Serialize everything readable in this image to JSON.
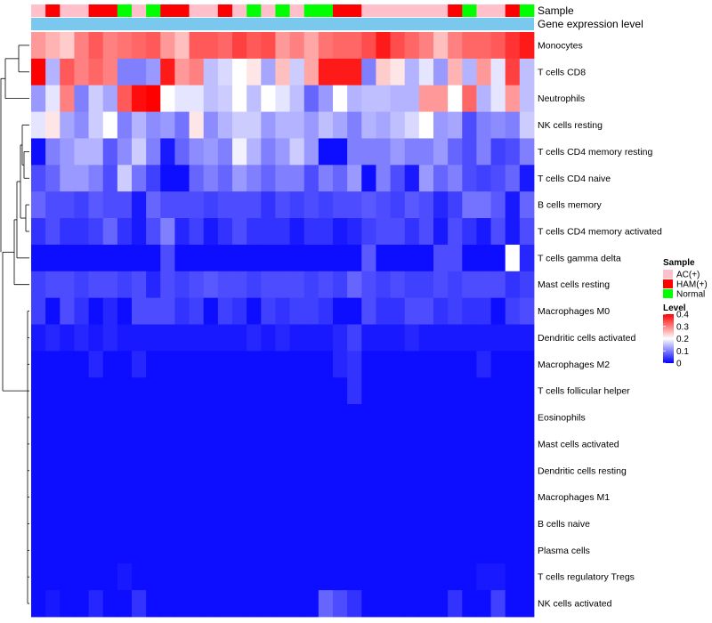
{
  "chart_data": {
    "type": "heatmap",
    "title": "",
    "annotation_rows": [
      "Sample",
      "Gene expression level"
    ],
    "sample_groups": [
      "AC(+)",
      "HAM(+)",
      "Normal"
    ],
    "sample_group_colors": {
      "AC(+)": "#ffc0cb",
      "HAM(+)": "#ff0000",
      "Normal": "#00ff00"
    },
    "gene_expression_level_color": "#7ac8ee",
    "sample_sequence": [
      "AC(+)",
      "HAM(+)",
      "AC(+)",
      "AC(+)",
      "HAM(+)",
      "HAM(+)",
      "Normal",
      "AC(+)",
      "Normal",
      "HAM(+)",
      "HAM(+)",
      "AC(+)",
      "AC(+)",
      "HAM(+)",
      "AC(+)",
      "Normal",
      "AC(+)",
      "Normal",
      "AC(+)",
      "Normal",
      "Normal",
      "HAM(+)",
      "HAM(+)",
      "AC(+)",
      "AC(+)",
      "AC(+)",
      "AC(+)",
      "AC(+)",
      "AC(+)",
      "HAM(+)",
      "Normal",
      "AC(+)",
      "AC(+)",
      "HAM(+)",
      "Normal"
    ],
    "rows": [
      "Monocytes",
      "T cells CD8",
      "Neutrophils",
      "NK cells resting",
      "T cells CD4 memory resting",
      "T cells CD4 naive",
      "B cells memory",
      "T cells CD4 memory activated",
      "T cells gamma delta",
      "Mast cells resting",
      "Macrophages M0",
      "Dendritic cells activated",
      "Macrophages M2",
      "T cells follicular helper",
      "Eosinophils",
      "Mast cells activated",
      "Dendritic cells resting",
      "Macrophages M1",
      "B cells naive",
      "Plasma cells",
      "T cells regulatory  Tregs",
      "NK cells activated"
    ],
    "row_levels": [
      [
        0.28,
        0.26,
        0.24,
        0.3,
        0.33,
        0.3,
        0.31,
        0.32,
        0.33,
        0.28,
        0.25,
        0.33,
        0.33,
        0.32,
        0.35,
        0.33,
        0.34,
        0.28,
        0.3,
        0.27,
        0.31,
        0.32,
        0.32,
        0.34,
        0.38,
        0.34,
        0.32,
        0.3,
        0.25,
        0.3,
        0.32,
        0.32,
        0.33,
        0.36,
        0.38
      ],
      [
        0.4,
        0.14,
        0.33,
        0.3,
        0.32,
        0.3,
        0.1,
        0.1,
        0.12,
        0.38,
        0.28,
        0.3,
        0.15,
        0.17,
        0.2,
        0.22,
        0.13,
        0.25,
        0.16,
        0.27,
        0.38,
        0.38,
        0.38,
        0.1,
        0.24,
        0.22,
        0.14,
        0.18,
        0.12,
        0.26,
        0.14,
        0.28,
        0.18,
        0.35,
        0.15
      ],
      [
        0.12,
        0.18,
        0.3,
        0.1,
        0.16,
        0.13,
        0.33,
        0.39,
        0.4,
        0.2,
        0.18,
        0.18,
        0.15,
        0.16,
        0.2,
        0.15,
        0.2,
        0.18,
        0.15,
        0.08,
        0.12,
        0.2,
        0.14,
        0.15,
        0.15,
        0.14,
        0.14,
        0.28,
        0.28,
        0.2,
        0.32,
        0.14,
        0.18,
        0.28,
        0.15
      ],
      [
        0.18,
        0.22,
        0.13,
        0.11,
        0.16,
        0.2,
        0.1,
        0.14,
        0.11,
        0.12,
        0.09,
        0.22,
        0.11,
        0.14,
        0.16,
        0.16,
        0.12,
        0.14,
        0.14,
        0.12,
        0.15,
        0.13,
        0.1,
        0.14,
        0.13,
        0.15,
        0.17,
        0.2,
        0.12,
        0.13,
        0.06,
        0.1,
        0.11,
        0.1,
        0.16
      ],
      [
        0.01,
        0.1,
        0.12,
        0.14,
        0.14,
        0.07,
        0.11,
        0.16,
        0.1,
        0.02,
        0.08,
        0.11,
        0.12,
        0.1,
        0.19,
        0.14,
        0.1,
        0.12,
        0.16,
        0.12,
        0.01,
        0.01,
        0.1,
        0.1,
        0.1,
        0.12,
        0.1,
        0.1,
        0.12,
        0.08,
        0.06,
        0.1,
        0.05,
        0.06,
        0.1
      ],
      [
        0.06,
        0.08,
        0.12,
        0.12,
        0.1,
        0.06,
        0.16,
        0.09,
        0.05,
        0.01,
        0.01,
        0.08,
        0.1,
        0.08,
        0.12,
        0.1,
        0.08,
        0.1,
        0.1,
        0.06,
        0.1,
        0.08,
        0.12,
        0.01,
        0.1,
        0.06,
        0.02,
        0.12,
        0.08,
        0.1,
        0.06,
        0.05,
        0.06,
        0.08,
        0.02
      ],
      [
        0.08,
        0.06,
        0.06,
        0.05,
        0.07,
        0.06,
        0.06,
        0.02,
        0.08,
        0.06,
        0.06,
        0.06,
        0.05,
        0.06,
        0.06,
        0.06,
        0.04,
        0.06,
        0.05,
        0.06,
        0.05,
        0.06,
        0.06,
        0.07,
        0.06,
        0.05,
        0.07,
        0.06,
        0.03,
        0.05,
        0.09,
        0.09,
        0.07,
        0.02,
        0.08
      ],
      [
        0.04,
        0.06,
        0.04,
        0.04,
        0.05,
        0.08,
        0.04,
        0.02,
        0.06,
        0.1,
        0.03,
        0.05,
        0.02,
        0.04,
        0.06,
        0.04,
        0.04,
        0.04,
        0.02,
        0.04,
        0.04,
        0.02,
        0.03,
        0.05,
        0.06,
        0.06,
        0.04,
        0.06,
        0.02,
        0.06,
        0.04,
        0.02,
        0.06,
        0.02,
        0.06
      ],
      [
        0.01,
        0.01,
        0.01,
        0.01,
        0.01,
        0.01,
        0.01,
        0.01,
        0.01,
        0.06,
        0.01,
        0.01,
        0.01,
        0.01,
        0.01,
        0.01,
        0.01,
        0.01,
        0.01,
        0.01,
        0.01,
        0.01,
        0.01,
        0.07,
        0.01,
        0.01,
        0.01,
        0.01,
        0.06,
        0.06,
        0.01,
        0.01,
        0.01,
        0.2,
        0.03
      ],
      [
        0.05,
        0.06,
        0.06,
        0.05,
        0.06,
        0.06,
        0.05,
        0.06,
        0.03,
        0.06,
        0.05,
        0.06,
        0.07,
        0.06,
        0.06,
        0.05,
        0.06,
        0.06,
        0.06,
        0.05,
        0.06,
        0.05,
        0.08,
        0.06,
        0.05,
        0.06,
        0.05,
        0.05,
        0.06,
        0.05,
        0.06,
        0.06,
        0.06,
        0.04,
        0.05
      ],
      [
        0.05,
        0.01,
        0.06,
        0.04,
        0.01,
        0.03,
        0.01,
        0.06,
        0.06,
        0.06,
        0.04,
        0.05,
        0.01,
        0.05,
        0.04,
        0.01,
        0.05,
        0.04,
        0.05,
        0.05,
        0.04,
        0.01,
        0.01,
        0.06,
        0.04,
        0.04,
        0.06,
        0.06,
        0.04,
        0.05,
        0.04,
        0.04,
        0.01,
        0.05,
        0.06
      ],
      [
        0.02,
        0.03,
        0.02,
        0.03,
        0.02,
        0.03,
        0.02,
        0.02,
        0.02,
        0.02,
        0.02,
        0.02,
        0.02,
        0.02,
        0.02,
        0.03,
        0.02,
        0.03,
        0.02,
        0.02,
        0.02,
        0.03,
        0.05,
        0.02,
        0.02,
        0.02,
        0.03,
        0.02,
        0.02,
        0.02,
        0.02,
        0.02,
        0.02,
        0.02,
        0.02
      ],
      [
        0.01,
        0.01,
        0.01,
        0.01,
        0.03,
        0.01,
        0.01,
        0.03,
        0.01,
        0.01,
        0.01,
        0.01,
        0.01,
        0.01,
        0.01,
        0.01,
        0.01,
        0.01,
        0.01,
        0.01,
        0.01,
        0.03,
        0.04,
        0.01,
        0.01,
        0.01,
        0.01,
        0.01,
        0.01,
        0.01,
        0.01,
        0.03,
        0.01,
        0.01,
        0.01
      ],
      [
        0.01,
        0.01,
        0.01,
        0.01,
        0.01,
        0.01,
        0.01,
        0.01,
        0.01,
        0.01,
        0.01,
        0.01,
        0.01,
        0.01,
        0.01,
        0.01,
        0.01,
        0.01,
        0.01,
        0.01,
        0.01,
        0.01,
        0.04,
        0.01,
        0.01,
        0.01,
        0.01,
        0.01,
        0.01,
        0.01,
        0.01,
        0.01,
        0.01,
        0.01,
        0.01
      ],
      [
        0.01,
        0.01,
        0.01,
        0.01,
        0.01,
        0.01,
        0.01,
        0.01,
        0.01,
        0.01,
        0.01,
        0.01,
        0.01,
        0.01,
        0.01,
        0.01,
        0.01,
        0.01,
        0.01,
        0.01,
        0.01,
        0.01,
        0.01,
        0.01,
        0.01,
        0.01,
        0.01,
        0.01,
        0.01,
        0.01,
        0.01,
        0.01,
        0.01,
        0.01,
        0.01
      ],
      [
        0.01,
        0.01,
        0.01,
        0.01,
        0.01,
        0.01,
        0.01,
        0.01,
        0.01,
        0.01,
        0.01,
        0.01,
        0.01,
        0.01,
        0.01,
        0.01,
        0.01,
        0.01,
        0.01,
        0.01,
        0.01,
        0.01,
        0.01,
        0.01,
        0.01,
        0.01,
        0.01,
        0.01,
        0.01,
        0.01,
        0.01,
        0.01,
        0.01,
        0.01,
        0.01
      ],
      [
        0.01,
        0.01,
        0.01,
        0.01,
        0.01,
        0.01,
        0.01,
        0.01,
        0.01,
        0.01,
        0.01,
        0.01,
        0.01,
        0.01,
        0.01,
        0.01,
        0.01,
        0.01,
        0.01,
        0.01,
        0.01,
        0.01,
        0.01,
        0.01,
        0.01,
        0.01,
        0.01,
        0.01,
        0.01,
        0.01,
        0.01,
        0.01,
        0.01,
        0.01,
        0.01
      ],
      [
        0.01,
        0.01,
        0.01,
        0.01,
        0.01,
        0.01,
        0.01,
        0.01,
        0.01,
        0.01,
        0.01,
        0.01,
        0.01,
        0.01,
        0.01,
        0.01,
        0.01,
        0.01,
        0.01,
        0.01,
        0.01,
        0.01,
        0.01,
        0.01,
        0.01,
        0.01,
        0.01,
        0.01,
        0.01,
        0.01,
        0.01,
        0.01,
        0.01,
        0.01,
        0.01
      ],
      [
        0.01,
        0.01,
        0.01,
        0.01,
        0.01,
        0.01,
        0.01,
        0.01,
        0.01,
        0.01,
        0.01,
        0.01,
        0.01,
        0.01,
        0.01,
        0.01,
        0.01,
        0.01,
        0.01,
        0.01,
        0.01,
        0.01,
        0.01,
        0.01,
        0.01,
        0.01,
        0.01,
        0.01,
        0.01,
        0.01,
        0.01,
        0.01,
        0.01,
        0.01,
        0.01
      ],
      [
        0.01,
        0.01,
        0.01,
        0.01,
        0.01,
        0.01,
        0.01,
        0.01,
        0.01,
        0.01,
        0.01,
        0.01,
        0.01,
        0.01,
        0.01,
        0.01,
        0.01,
        0.01,
        0.01,
        0.01,
        0.01,
        0.01,
        0.01,
        0.01,
        0.01,
        0.01,
        0.01,
        0.01,
        0.01,
        0.01,
        0.01,
        0.01,
        0.01,
        0.01,
        0.01
      ],
      [
        0.01,
        0.01,
        0.01,
        0.01,
        0.01,
        0.01,
        0.02,
        0.01,
        0.01,
        0.01,
        0.01,
        0.01,
        0.01,
        0.01,
        0.01,
        0.01,
        0.01,
        0.01,
        0.01,
        0.01,
        0.01,
        0.01,
        0.01,
        0.01,
        0.01,
        0.01,
        0.01,
        0.01,
        0.01,
        0.01,
        0.01,
        0.02,
        0.02,
        0.01,
        0.01
      ],
      [
        0.01,
        0.02,
        0.01,
        0.01,
        0.03,
        0.01,
        0.01,
        0.04,
        0.01,
        0.01,
        0.01,
        0.01,
        0.01,
        0.01,
        0.01,
        0.01,
        0.01,
        0.01,
        0.01,
        0.01,
        0.08,
        0.06,
        0.04,
        0.01,
        0.01,
        0.01,
        0.01,
        0.01,
        0.01,
        0.04,
        0.01,
        0.01,
        0.05,
        0.01,
        0.01
      ]
    ],
    "legend": {
      "sample_title": "Sample",
      "level_title": "Level",
      "level_ticks": [
        0.4,
        0.3,
        0.2,
        0.1,
        0
      ],
      "level_range": [
        0,
        0.4
      ],
      "low_color": "#0000ff",
      "mid_color": "#ffffff",
      "high_color": "#ff0000",
      "placement": "right"
    }
  }
}
